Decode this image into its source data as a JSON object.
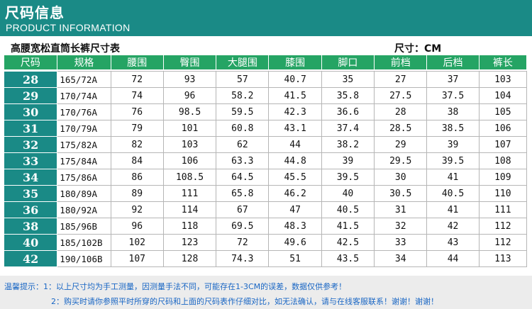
{
  "header": {
    "title": "尺码信息",
    "subtitle": "PRODUCT INFORMATION"
  },
  "product": {
    "name": "高腰宽松直筒长裤尺寸表",
    "unit": "尺寸：CM"
  },
  "table": {
    "columns": [
      "尺码",
      "规格",
      "腰围",
      "臀围",
      "大腿围",
      "膝围",
      "脚口",
      "前档",
      "后档",
      "裤长"
    ],
    "rows": [
      [
        "28",
        "165/72A",
        "72",
        "93",
        "57",
        "40.7",
        "35",
        "27",
        "37",
        "103"
      ],
      [
        "29",
        "170/74A",
        "74",
        "96",
        "58.2",
        "41.5",
        "35.8",
        "27.5",
        "37.5",
        "104"
      ],
      [
        "30",
        "170/76A",
        "76",
        "98.5",
        "59.5",
        "42.3",
        "36.6",
        "28",
        "38",
        "105"
      ],
      [
        "31",
        "170/79A",
        "79",
        "101",
        "60.8",
        "43.1",
        "37.4",
        "28.5",
        "38.5",
        "106"
      ],
      [
        "32",
        "175/82A",
        "82",
        "103",
        "62",
        "44",
        "38.2",
        "29",
        "39",
        "107"
      ],
      [
        "33",
        "175/84A",
        "84",
        "106",
        "63.3",
        "44.8",
        "39",
        "29.5",
        "39.5",
        "108"
      ],
      [
        "34",
        "175/86A",
        "86",
        "108.5",
        "64.5",
        "45.5",
        "39.5",
        "30",
        "41",
        "109"
      ],
      [
        "35",
        "180/89A",
        "89",
        "111",
        "65.8",
        "46.2",
        "40",
        "30.5",
        "40.5",
        "110"
      ],
      [
        "36",
        "180/92A",
        "92",
        "114",
        "67",
        "47",
        "40.5",
        "31",
        "41",
        "111"
      ],
      [
        "38",
        "185/96B",
        "96",
        "118",
        "69.5",
        "48.3",
        "41.5",
        "32",
        "42",
        "112"
      ],
      [
        "40",
        "185/102B",
        "102",
        "123",
        "72",
        "49.6",
        "42.5",
        "33",
        "43",
        "112"
      ],
      [
        "42",
        "190/106B",
        "107",
        "128",
        "74.3",
        "51",
        "43.5",
        "34",
        "44",
        "113"
      ]
    ]
  },
  "notes": {
    "line1": "温馨提示：1：以上尺寸均为手工测量，因测量手法不同，可能存在1-3CM的误差，数据仅供参考！",
    "line2": "2：购买时请你参照平时所穿的尺码和上面的尺码表作仔细对比，如无法确认，请与在线客服联系！谢谢！谢谢！"
  },
  "colors": {
    "teal": "#1a8a86",
    "green": "#25a464",
    "note_blue": "#1966c4"
  }
}
